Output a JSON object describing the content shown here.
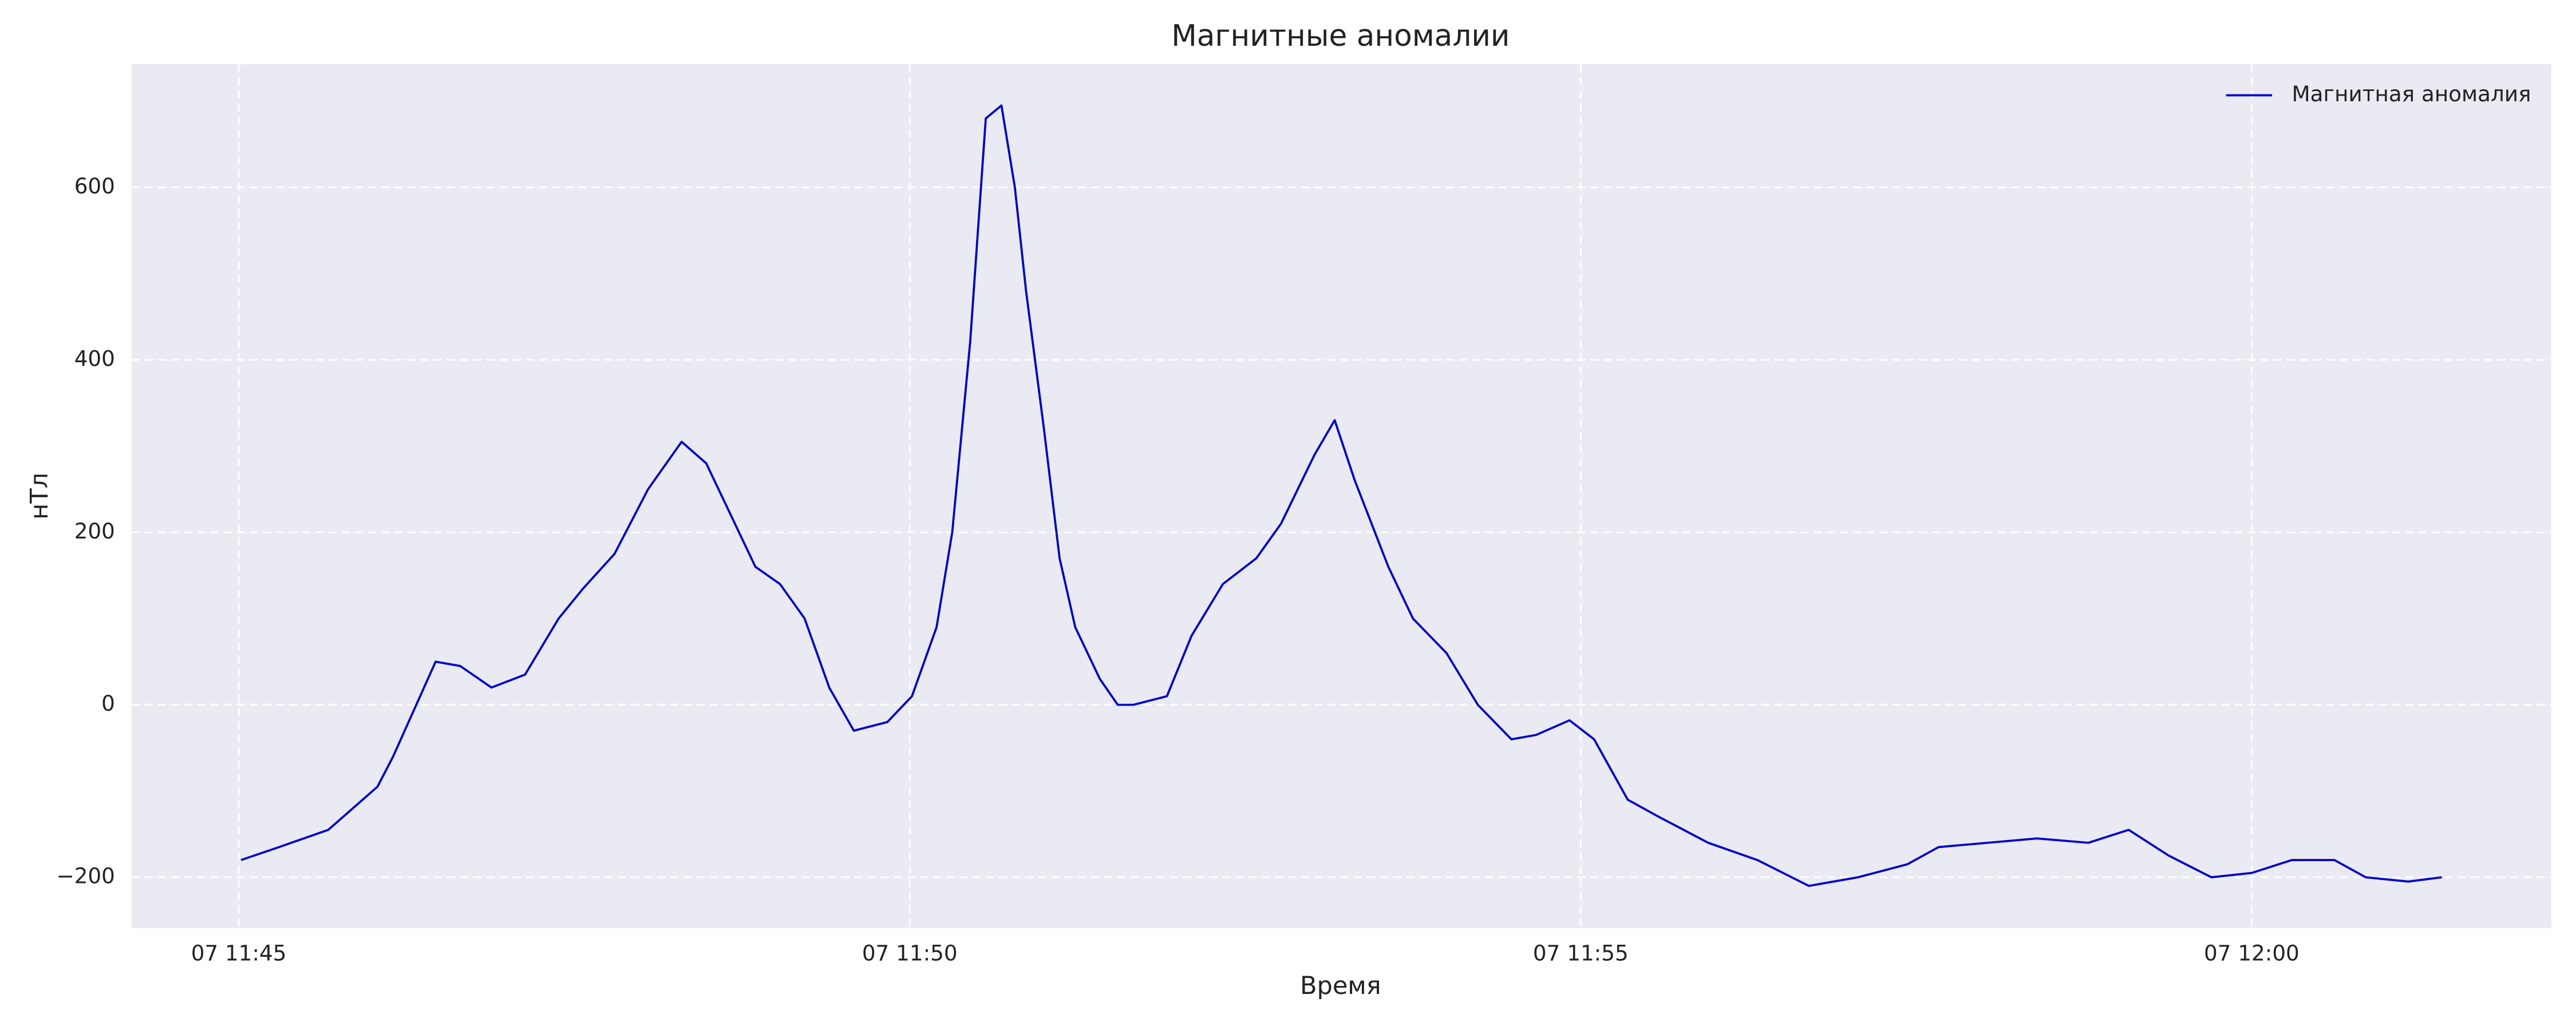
{
  "chart_data": {
    "type": "line",
    "title": "Магнитные аномалии",
    "x_label": "Время",
    "y_label": "нТл",
    "x": [
      "07 11:45:01",
      "07 11:45:18",
      "07 11:45:40",
      "07 11:46:02",
      "07 11:46:09",
      "07 11:46:28",
      "07 11:46:39",
      "07 11:46:53",
      "07 11:47:08",
      "07 11:47:23",
      "07 11:47:34",
      "07 11:47:48",
      "07 11:48:03",
      "07 11:48:18",
      "07 11:48:29",
      "07 11:48:40",
      "07 11:48:51",
      "07 11:49:02",
      "07 11:49:13",
      "07 11:49:24",
      "07 11:49:35",
      "07 11:49:50",
      "07 11:50:01",
      "07 11:50:12",
      "07 11:50:19",
      "07 11:50:27",
      "07 11:50:34",
      "07 11:50:41",
      "07 11:50:47",
      "07 11:50:52",
      "07 11:51:00",
      "07 11:51:07",
      "07 11:51:14",
      "07 11:51:25",
      "07 11:51:33",
      "07 11:51:40",
      "07 11:51:55",
      "07 11:52:06",
      "07 11:52:20",
      "07 11:52:35",
      "07 11:52:46",
      "07 11:53:01",
      "07 11:53:10",
      "07 11:53:19",
      "07 11:53:34",
      "07 11:53:45",
      "07 11:54:00",
      "07 11:54:14",
      "07 11:54:29",
      "07 11:54:40",
      "07 11:54:55",
      "07 11:55:06",
      "07 11:55:21",
      "07 11:55:35",
      "07 11:55:57",
      "07 11:56:19",
      "07 11:56:42",
      "07 11:57:04",
      "07 11:57:26",
      "07 11:57:40",
      "07 11:58:02",
      "07 11:58:24",
      "07 11:58:47",
      "07 11:59:05",
      "07 11:59:23",
      "07 11:59:42",
      "07 12:00:00",
      "07 12:00:18",
      "07 12:00:37",
      "07 12:00:51",
      "07 12:01:10",
      "07 12:01:25"
    ],
    "series": [
      {
        "name": "Магнитная аномалия",
        "color": "#0000cc",
        "values": [
          -180,
          -165,
          -145,
          -95,
          -60,
          50,
          45,
          20,
          35,
          100,
          135,
          175,
          250,
          305,
          280,
          220,
          160,
          140,
          100,
          20,
          -30,
          -20,
          10,
          90,
          200,
          420,
          680,
          695,
          600,
          480,
          320,
          170,
          90,
          30,
          0,
          0,
          10,
          80,
          140,
          170,
          210,
          290,
          330,
          260,
          160,
          100,
          60,
          0,
          -40,
          -35,
          -18,
          -40,
          -110,
          -130,
          -160,
          -180,
          -210,
          -200,
          -185,
          -165,
          -160,
          -155,
          -160,
          -145,
          -175,
          -200,
          -195,
          -180,
          -180,
          -200,
          -205,
          -200
        ]
      }
    ],
    "xlim": [
      "07 11:44:12",
      "07 12:02:14"
    ],
    "xticks": [
      {
        "value": "07 11:45:00",
        "label": "07 11:45"
      },
      {
        "value": "07 11:50:00",
        "label": "07 11:50"
      },
      {
        "value": "07 11:55:00",
        "label": "07 11:55"
      },
      {
        "value": "07 12:00:00",
        "label": "07 12:00"
      }
    ],
    "ylim": [
      -259,
      743
    ],
    "yticks": [
      {
        "value": -200,
        "label": "−200"
      },
      0,
      200,
      400,
      600
    ],
    "grid": true,
    "legend": "upper right"
  }
}
